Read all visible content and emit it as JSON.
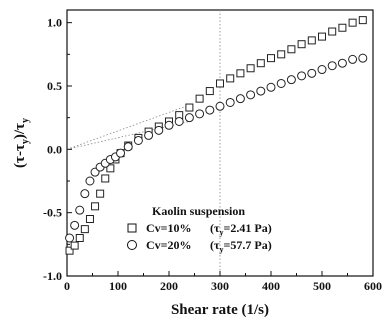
{
  "chart_data": {
    "type": "scatter",
    "xlabel": "Shear rate (1/s)",
    "ylabel": {
      "open": "(τ-τ",
      "sub1": "y",
      "mid": ")/τ",
      "sub2": "y"
    },
    "xlim": [
      0,
      600
    ],
    "ylim": [
      -1.0,
      1.1
    ],
    "xticks": [
      "0",
      "100",
      "200",
      "300",
      "400",
      "500",
      "600"
    ],
    "yticks": [
      "-1.0",
      "-0.5",
      "0.0",
      "0.5",
      "1.0"
    ],
    "legend": {
      "title": "Kaolin suspension",
      "position": "lower-middle"
    },
    "series": [
      {
        "name": "Cv=10%",
        "tau_y_label": "=2.41 Pa",
        "marker": "square",
        "x": [
          5,
          15,
          25,
          35,
          45,
          55,
          65,
          75,
          85,
          95,
          105,
          120,
          140,
          160,
          180,
          200,
          220,
          240,
          260,
          280,
          300,
          320,
          340,
          360,
          380,
          400,
          420,
          440,
          460,
          480,
          500,
          520,
          540,
          560,
          580
        ],
        "y": [
          -0.8,
          -0.76,
          -0.7,
          -0.63,
          -0.55,
          -0.45,
          -0.35,
          -0.23,
          -0.15,
          -0.08,
          -0.03,
          0.03,
          0.09,
          0.14,
          0.18,
          0.22,
          0.27,
          0.33,
          0.4,
          0.46,
          0.52,
          0.56,
          0.6,
          0.64,
          0.68,
          0.72,
          0.75,
          0.79,
          0.83,
          0.86,
          0.89,
          0.93,
          0.96,
          1.0,
          1.02
        ]
      },
      {
        "name": "Cv=20%",
        "tau_y_label": "=57.7 Pa",
        "marker": "circle",
        "x": [
          5,
          15,
          25,
          35,
          45,
          55,
          65,
          75,
          85,
          95,
          105,
          120,
          140,
          160,
          180,
          200,
          220,
          240,
          260,
          280,
          300,
          320,
          340,
          360,
          380,
          400,
          420,
          440,
          460,
          480,
          500,
          520,
          540,
          560,
          580
        ],
        "y": [
          -0.7,
          -0.6,
          -0.48,
          -0.35,
          -0.25,
          -0.18,
          -0.14,
          -0.11,
          -0.08,
          -0.06,
          -0.03,
          0.02,
          0.07,
          0.11,
          0.15,
          0.19,
          0.22,
          0.25,
          0.28,
          0.31,
          0.34,
          0.37,
          0.4,
          0.43,
          0.46,
          0.49,
          0.52,
          0.55,
          0.58,
          0.6,
          0.63,
          0.66,
          0.68,
          0.71,
          0.72
        ]
      }
    ],
    "reference_lines": [
      {
        "from": [
          0,
          0
        ],
        "to": [
          240,
          0.35
        ]
      },
      {
        "from": [
          0,
          0
        ],
        "to": [
          240,
          0.22
        ]
      },
      {
        "vertical_x": 300
      }
    ]
  }
}
